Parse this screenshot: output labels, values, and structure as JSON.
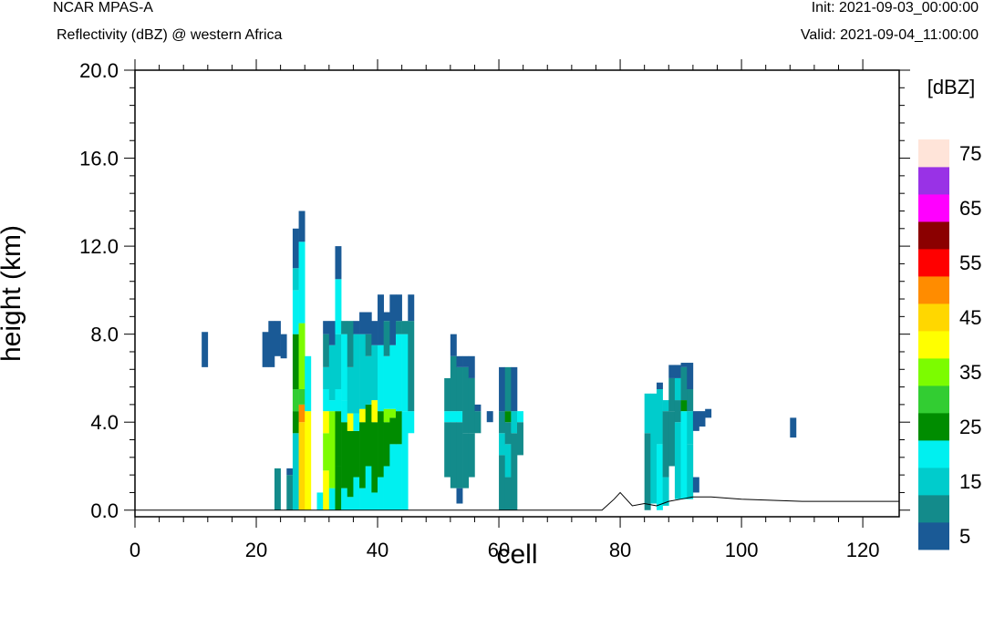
{
  "header": {
    "model": "NCAR MPAS-A",
    "field": "Reflectivity (dBZ) @ western Africa",
    "init": "Init: 2021-09-03_00:00:00",
    "valid": "Valid: 2021-09-04_11:00:00"
  },
  "chart_data": {
    "type": "heatmap",
    "xlabel": "cell",
    "ylabel": "height (km)",
    "xlim": [
      0,
      126
    ],
    "ylim": [
      -0.3,
      20.0
    ],
    "x_ticks": [
      "0",
      "20",
      "40",
      "60",
      "80",
      "100",
      "120"
    ],
    "y_ticks": [
      "0.0",
      "4.0",
      "8.0",
      "12.0",
      "16.0",
      "20.0"
    ],
    "colorbar": {
      "title": "[dBZ]",
      "labels": [
        "5",
        "15",
        "25",
        "35",
        "45",
        "55",
        "65",
        "75"
      ],
      "colors": [
        "#1a5a96",
        "#138b8b",
        "#00cccc",
        "#00f0f0",
        "#008c00",
        "#32cd32",
        "#7cfc00",
        "#ffff00",
        "#ffd700",
        "#ff8c00",
        "#ff0000",
        "#8b0000",
        "#ff00ff",
        "#9932e6",
        "#ffe4d9"
      ]
    },
    "cell_height_km": 0.4,
    "columns": [
      {
        "x": 11,
        "stack": [
          [
            6.5,
            8.1,
            0
          ]
        ]
      },
      {
        "x": 21,
        "stack": [
          [
            6.5,
            8.1,
            0
          ]
        ]
      },
      {
        "x": 22,
        "stack": [
          [
            6.5,
            8.6,
            0
          ]
        ]
      },
      {
        "x": 23,
        "stack": [
          [
            7.0,
            8.6,
            0
          ]
        ]
      },
      {
        "x": 23,
        "stack": [
          [
            0,
            1.9,
            1
          ]
        ]
      },
      {
        "x": 24,
        "stack": [
          [
            6.9,
            8.0,
            0
          ]
        ]
      },
      {
        "x": 25,
        "stack": [
          [
            0,
            1.6,
            1
          ],
          [
            1.6,
            1.9,
            0
          ]
        ]
      },
      {
        "x": 26,
        "stack": [
          [
            0,
            3.5,
            2
          ],
          [
            3.5,
            4.5,
            4
          ],
          [
            4.5,
            5.5,
            5
          ],
          [
            5.5,
            8.0,
            4
          ],
          [
            8.0,
            10.0,
            3
          ],
          [
            10.0,
            11.0,
            2
          ],
          [
            11.0,
            12.8,
            0
          ]
        ]
      },
      {
        "x": 27,
        "stack": [
          [
            0,
            4.0,
            8
          ],
          [
            4.0,
            4.8,
            9
          ],
          [
            4.8,
            5.5,
            5
          ],
          [
            5.5,
            8.5,
            6
          ],
          [
            8.5,
            12.2,
            3
          ],
          [
            12.2,
            13.6,
            0
          ]
        ]
      },
      {
        "x": 28,
        "stack": [
          [
            0,
            4.5,
            7
          ],
          [
            4.5,
            7.0,
            3
          ]
        ]
      },
      {
        "x": 30,
        "stack": [
          [
            0,
            0.8,
            3
          ]
        ]
      },
      {
        "x": 31,
        "stack": [
          [
            0,
            1.8,
            7
          ],
          [
            1.8,
            3.5,
            6
          ],
          [
            3.5,
            4.5,
            7
          ],
          [
            4.5,
            5.5,
            3
          ],
          [
            5.5,
            6.5,
            2
          ],
          [
            6.5,
            8.0,
            1
          ],
          [
            8.0,
            8.6,
            0
          ]
        ]
      },
      {
        "x": 32,
        "stack": [
          [
            0,
            1.0,
            3
          ],
          [
            1.0,
            4.5,
            6
          ],
          [
            4.5,
            5.0,
            3
          ],
          [
            5.0,
            7.5,
            2
          ],
          [
            7.5,
            8.6,
            0
          ]
        ]
      },
      {
        "x": 33,
        "stack": [
          [
            0,
            2.0,
            4
          ],
          [
            2.0,
            4.5,
            4
          ],
          [
            4.5,
            5.5,
            3
          ],
          [
            5.5,
            8.0,
            2
          ],
          [
            8.0,
            10.5,
            3
          ],
          [
            10.5,
            12.0,
            0
          ]
        ]
      },
      {
        "x": 34,
        "stack": [
          [
            0,
            1.0,
            3
          ],
          [
            1.0,
            4.0,
            4
          ],
          [
            4.0,
            5.0,
            3
          ],
          [
            5.0,
            8.0,
            3
          ],
          [
            8.0,
            8.6,
            1
          ]
        ]
      },
      {
        "x": 35,
        "stack": [
          [
            0,
            0.6,
            3
          ],
          [
            0.6,
            3.6,
            4
          ],
          [
            3.6,
            4.4,
            7
          ],
          [
            4.4,
            6.5,
            2
          ],
          [
            6.5,
            8.6,
            1
          ]
        ]
      },
      {
        "x": 36,
        "stack": [
          [
            0,
            1.5,
            3
          ],
          [
            1.5,
            3.6,
            4
          ],
          [
            3.6,
            4.4,
            3
          ],
          [
            4.4,
            8.0,
            2
          ],
          [
            8.0,
            8.6,
            0
          ]
        ]
      },
      {
        "x": 37,
        "stack": [
          [
            0,
            1.0,
            3
          ],
          [
            1.0,
            4.0,
            4
          ],
          [
            4.0,
            4.6,
            7
          ],
          [
            4.6,
            8.0,
            2
          ],
          [
            8.0,
            9.0,
            0
          ]
        ]
      },
      {
        "x": 38,
        "stack": [
          [
            0,
            2.0,
            3
          ],
          [
            2.0,
            4.8,
            4
          ],
          [
            4.8,
            7.0,
            2
          ],
          [
            7.0,
            8.0,
            1
          ],
          [
            8.0,
            9.0,
            0
          ]
        ]
      },
      {
        "x": 39,
        "stack": [
          [
            0,
            0.8,
            3
          ],
          [
            0.8,
            4.0,
            4
          ],
          [
            4.0,
            5.0,
            7
          ],
          [
            5.0,
            7.5,
            2
          ],
          [
            7.5,
            8.6,
            0
          ]
        ]
      },
      {
        "x": 40,
        "stack": [
          [
            0,
            1.5,
            3
          ],
          [
            1.5,
            4.5,
            4
          ],
          [
            4.5,
            7.5,
            3
          ],
          [
            7.5,
            9.8,
            0
          ]
        ]
      },
      {
        "x": 41,
        "stack": [
          [
            0,
            2.0,
            3
          ],
          [
            2.0,
            4.0,
            4
          ],
          [
            4.0,
            4.6,
            6
          ],
          [
            4.6,
            7.0,
            3
          ],
          [
            7.0,
            8.6,
            1
          ],
          [
            8.6,
            9.0,
            0
          ]
        ]
      },
      {
        "x": 42,
        "stack": [
          [
            0,
            3.0,
            3
          ],
          [
            3.0,
            4.2,
            4
          ],
          [
            4.2,
            4.6,
            6
          ],
          [
            4.6,
            7.5,
            3
          ],
          [
            7.5,
            9.8,
            0
          ]
        ]
      },
      {
        "x": 43,
        "stack": [
          [
            0,
            3.0,
            3
          ],
          [
            3.0,
            4.5,
            4
          ],
          [
            4.5,
            8.0,
            3
          ],
          [
            8.0,
            8.6,
            1
          ],
          [
            8.6,
            9.8,
            0
          ]
        ]
      },
      {
        "x": 44,
        "stack": [
          [
            0,
            4.5,
            3
          ],
          [
            4.5,
            8.0,
            3
          ],
          [
            8.0,
            8.6,
            1
          ]
        ]
      },
      {
        "x": 45,
        "stack": [
          [
            3.5,
            4.5,
            3
          ],
          [
            4.5,
            8.6,
            1
          ],
          [
            8.6,
            9.8,
            0
          ]
        ]
      },
      {
        "x": 51,
        "stack": [
          [
            1.5,
            4.0,
            1
          ],
          [
            4.0,
            4.5,
            3
          ],
          [
            4.5,
            6.0,
            1
          ]
        ]
      },
      {
        "x": 52,
        "stack": [
          [
            1.0,
            4.0,
            1
          ],
          [
            4.0,
            4.5,
            3
          ],
          [
            4.5,
            7.0,
            1
          ],
          [
            7.0,
            8.0,
            0
          ]
        ]
      },
      {
        "x": 53,
        "stack": [
          [
            0.3,
            1.0,
            0
          ],
          [
            1.0,
            4.0,
            1
          ],
          [
            4.0,
            4.5,
            3
          ],
          [
            4.5,
            6.5,
            1
          ],
          [
            6.5,
            7.0,
            0
          ]
        ]
      },
      {
        "x": 54,
        "stack": [
          [
            1.0,
            3.5,
            1
          ],
          [
            3.5,
            6.5,
            1
          ],
          [
            6.5,
            7.0,
            0
          ]
        ]
      },
      {
        "x": 55,
        "stack": [
          [
            1.5,
            3.5,
            1
          ],
          [
            3.5,
            6.0,
            1
          ],
          [
            6.0,
            7.0,
            0
          ]
        ]
      },
      {
        "x": 56,
        "stack": [
          [
            3.5,
            4.5,
            1
          ],
          [
            4.5,
            4.8,
            0
          ]
        ]
      },
      {
        "x": 58,
        "stack": [
          [
            4.0,
            4.5,
            0
          ]
        ]
      },
      {
        "x": 60,
        "stack": [
          [
            0,
            2.5,
            1
          ],
          [
            2.5,
            3.5,
            2
          ],
          [
            3.5,
            4.5,
            1
          ],
          [
            4.5,
            6.5,
            0
          ]
        ]
      },
      {
        "x": 61,
        "stack": [
          [
            0,
            1.5,
            1
          ],
          [
            1.5,
            3.0,
            2
          ],
          [
            3.0,
            4.0,
            1
          ],
          [
            4.0,
            4.5,
            4
          ],
          [
            4.5,
            6.5,
            1
          ]
        ]
      },
      {
        "x": 62,
        "stack": [
          [
            0,
            3.5,
            1
          ],
          [
            3.5,
            4.5,
            2
          ],
          [
            4.5,
            6.5,
            0
          ]
        ]
      },
      {
        "x": 63,
        "stack": [
          [
            2.5,
            4.0,
            1
          ],
          [
            4.0,
            4.5,
            3
          ]
        ]
      },
      {
        "x": 84,
        "stack": [
          [
            0,
            3.5,
            1
          ],
          [
            3.5,
            5.3,
            2
          ]
        ]
      },
      {
        "x": 85,
        "stack": [
          [
            0.3,
            5.3,
            2
          ]
        ]
      },
      {
        "x": 86,
        "stack": [
          [
            0,
            3.0,
            3
          ],
          [
            3.0,
            5.5,
            2
          ],
          [
            5.5,
            5.8,
            0
          ]
        ]
      },
      {
        "x": 87,
        "stack": [
          [
            0.2,
            1.5,
            2
          ],
          [
            1.5,
            4.5,
            1
          ],
          [
            4.5,
            5.0,
            2
          ]
        ]
      },
      {
        "x": 88,
        "stack": [
          [
            2.0,
            4.5,
            1
          ],
          [
            4.5,
            6.0,
            1
          ],
          [
            6.0,
            6.6,
            0
          ]
        ]
      },
      {
        "x": 89,
        "stack": [
          [
            0.5,
            4.0,
            2
          ],
          [
            4.0,
            5.0,
            1
          ],
          [
            5.0,
            6.0,
            2
          ],
          [
            6.0,
            6.6,
            0
          ]
        ]
      },
      {
        "x": 90,
        "stack": [
          [
            0.5,
            4.5,
            3
          ],
          [
            4.5,
            5.0,
            4
          ],
          [
            5.0,
            6.5,
            1
          ],
          [
            6.5,
            6.7,
            0
          ]
        ]
      },
      {
        "x": 91,
        "stack": [
          [
            0.5,
            3.0,
            2
          ],
          [
            3.0,
            4.5,
            2
          ],
          [
            4.5,
            5.5,
            1
          ],
          [
            5.5,
            6.7,
            0
          ]
        ]
      },
      {
        "x": 92,
        "stack": [
          [
            0.8,
            1.5,
            0
          ],
          [
            3.6,
            4.5,
            0
          ]
        ]
      },
      {
        "x": 93,
        "stack": [
          [
            3.8,
            4.5,
            0
          ]
        ]
      },
      {
        "x": 94,
        "stack": [
          [
            4.2,
            4.6,
            0
          ]
        ]
      },
      {
        "x": 108,
        "stack": [
          [
            3.3,
            4.2,
            0
          ]
        ]
      }
    ],
    "terrain": [
      [
        0,
        0
      ],
      [
        77,
        0
      ],
      [
        79,
        0.5
      ],
      [
        80,
        0.8
      ],
      [
        82,
        0.2
      ],
      [
        84,
        0.3
      ],
      [
        86,
        0.2
      ],
      [
        88,
        0.4
      ],
      [
        90,
        0.5
      ],
      [
        92,
        0.6
      ],
      [
        95,
        0.6
      ],
      [
        100,
        0.5
      ],
      [
        110,
        0.4
      ],
      [
        118,
        0.4
      ],
      [
        126,
        0.4
      ]
    ]
  }
}
